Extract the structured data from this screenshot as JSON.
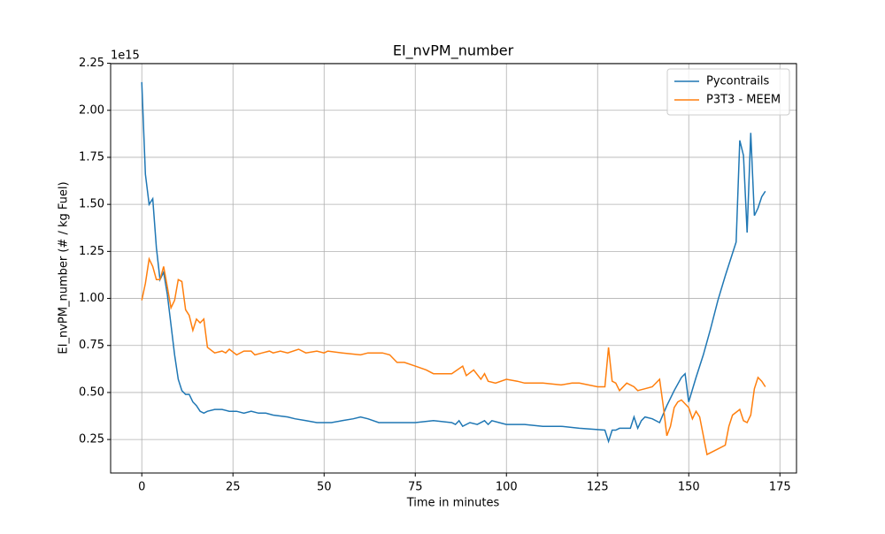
{
  "chart_data": {
    "type": "line",
    "title": "EI_nvPM_number",
    "x_label": "Time in minutes",
    "y_label": "EI_nvPM_number (# / kg Fuel)",
    "y_offset_label": "1e15",
    "xlim": [
      -8.55,
      179.55
    ],
    "xticks": [
      0,
      25,
      50,
      75,
      100,
      125,
      150,
      175
    ],
    "ylim": [
      0.072,
      2.248
    ],
    "yticks": [
      0.25,
      {
        "value": 0.5,
        "label": "0.50"
      },
      0.75,
      {
        "value": 1,
        "label": "1.00"
      },
      1.25,
      {
        "value": 1.5,
        "label": "1.50"
      },
      1.75,
      {
        "value": 2,
        "label": "2.00"
      },
      2.25
    ],
    "grid": true,
    "legend": "upper right",
    "series": [
      {
        "name": "Pycontrails",
        "color": "#1f77b4",
        "x": [
          0,
          1,
          2,
          3,
          4,
          5,
          6,
          7,
          8,
          9,
          10,
          11,
          12,
          13,
          14,
          15,
          16,
          17,
          18,
          20,
          22,
          24,
          26,
          28,
          30,
          32,
          34,
          36,
          40,
          42,
          45,
          48,
          50,
          52,
          55,
          58,
          60,
          62,
          65,
          68,
          70,
          75,
          80,
          85,
          86,
          87,
          88,
          90,
          92,
          94,
          95,
          96,
          98,
          100,
          105,
          110,
          115,
          120,
          127,
          128,
          129,
          130,
          131,
          133,
          134,
          135,
          136,
          137,
          138,
          140,
          142,
          144,
          146,
          148,
          149,
          150,
          152,
          154,
          156,
          158,
          160,
          162,
          163,
          164,
          165,
          166,
          167,
          168,
          169,
          170,
          171
        ],
        "values": [
          2.15,
          1.66,
          1.5,
          1.53,
          1.27,
          1.1,
          1.14,
          1.02,
          0.86,
          0.7,
          0.57,
          0.51,
          0.49,
          0.49,
          0.45,
          0.43,
          0.4,
          0.39,
          0.4,
          0.41,
          0.41,
          0.4,
          0.4,
          0.39,
          0.4,
          0.39,
          0.39,
          0.38,
          0.37,
          0.36,
          0.35,
          0.34,
          0.34,
          0.34,
          0.35,
          0.36,
          0.37,
          0.36,
          0.34,
          0.34,
          0.34,
          0.34,
          0.35,
          0.34,
          0.33,
          0.35,
          0.32,
          0.34,
          0.33,
          0.35,
          0.33,
          0.35,
          0.34,
          0.33,
          0.33,
          0.32,
          0.32,
          0.31,
          0.3,
          0.24,
          0.3,
          0.3,
          0.31,
          0.31,
          0.31,
          0.37,
          0.31,
          0.35,
          0.37,
          0.36,
          0.34,
          0.43,
          0.51,
          0.58,
          0.6,
          0.45,
          0.58,
          0.7,
          0.84,
          0.99,
          1.12,
          1.24,
          1.3,
          1.84,
          1.76,
          1.35,
          1.88,
          1.44,
          1.48,
          1.54,
          1.57
        ]
      },
      {
        "name": "P3T3 - MEEM",
        "color": "#ff7f0e",
        "x": [
          0,
          1,
          2,
          3,
          4,
          5,
          6,
          7,
          8,
          9,
          10,
          11,
          12,
          13,
          14,
          15,
          16,
          17,
          18,
          20,
          22,
          23,
          24,
          26,
          28,
          30,
          31,
          33,
          35,
          36,
          38,
          40,
          43,
          45,
          48,
          50,
          51,
          55,
          60,
          62,
          65,
          66,
          68,
          70,
          72,
          75,
          78,
          80,
          85,
          88,
          89,
          91,
          93,
          94,
          95,
          97,
          100,
          103,
          105,
          110,
          115,
          118,
          120,
          125,
          127,
          128,
          129,
          130,
          131,
          133,
          135,
          136,
          138,
          140,
          142,
          143,
          144,
          145,
          146,
          147,
          148,
          150,
          151,
          152,
          153,
          155,
          158,
          160,
          161,
          162,
          164,
          165,
          166,
          167,
          168,
          169,
          170,
          171
        ],
        "values": [
          0.99,
          1.08,
          1.21,
          1.17,
          1.1,
          1.1,
          1.17,
          1.06,
          0.95,
          0.99,
          1.1,
          1.09,
          0.94,
          0.91,
          0.83,
          0.89,
          0.87,
          0.89,
          0.74,
          0.71,
          0.72,
          0.71,
          0.73,
          0.7,
          0.72,
          0.72,
          0.7,
          0.71,
          0.72,
          0.71,
          0.72,
          0.71,
          0.73,
          0.71,
          0.72,
          0.71,
          0.72,
          0.71,
          0.7,
          0.71,
          0.71,
          0.71,
          0.7,
          0.66,
          0.66,
          0.64,
          0.62,
          0.6,
          0.6,
          0.64,
          0.59,
          0.62,
          0.57,
          0.6,
          0.56,
          0.55,
          0.57,
          0.56,
          0.55,
          0.55,
          0.54,
          0.55,
          0.55,
          0.53,
          0.53,
          0.74,
          0.56,
          0.55,
          0.51,
          0.55,
          0.53,
          0.51,
          0.52,
          0.53,
          0.57,
          0.43,
          0.27,
          0.32,
          0.42,
          0.45,
          0.46,
          0.42,
          0.36,
          0.4,
          0.37,
          0.17,
          0.2,
          0.22,
          0.32,
          0.38,
          0.41,
          0.35,
          0.34,
          0.38,
          0.52,
          0.58,
          0.56,
          0.53
        ]
      }
    ]
  }
}
